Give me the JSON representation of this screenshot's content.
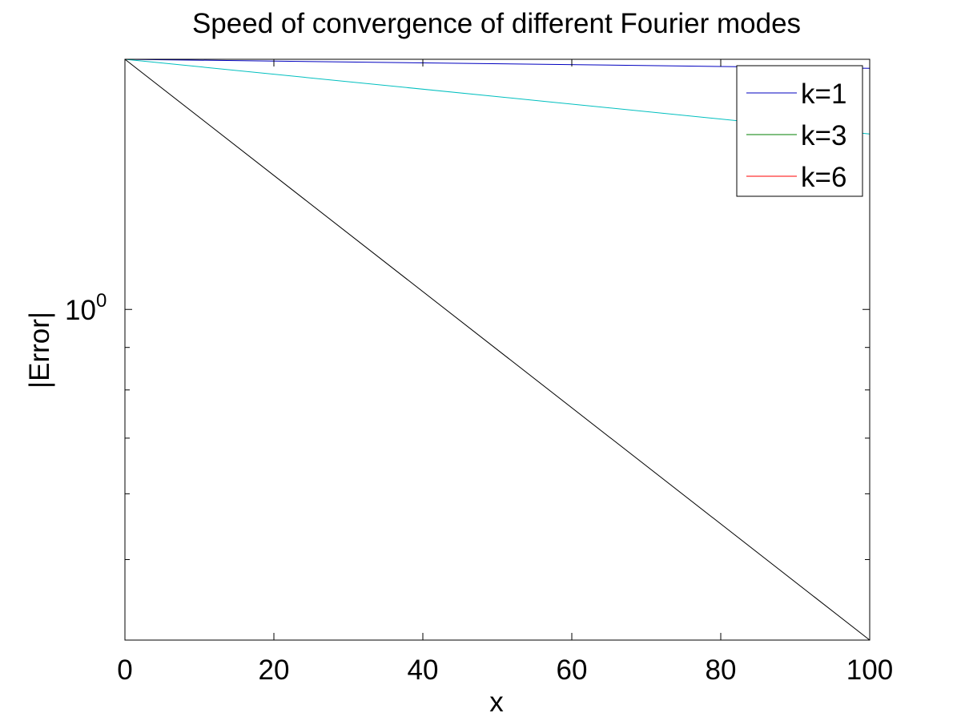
{
  "chart_data": {
    "type": "line",
    "title": "Speed of convergence of different Fourier modes",
    "xlabel": "x",
    "ylabel": "|Error|",
    "xlim": [
      0,
      100
    ],
    "ylim": [
      0.4,
      2.0
    ],
    "yscale": "log",
    "xticks": [
      0,
      20,
      40,
      60,
      80,
      100
    ],
    "xtick_labels": [
      "0",
      "20",
      "40",
      "60",
      "80",
      "100"
    ],
    "ytick_major": [
      {
        "value": 1,
        "base": "10",
        "exponent": "0"
      }
    ],
    "ytick_minor": [
      0.4,
      0.5,
      0.6,
      0.7,
      0.8,
      0.9,
      2.0
    ],
    "grid": false,
    "legend_position": "top-right",
    "legend": [
      {
        "label": "k=1",
        "color": "#0000bf"
      },
      {
        "label": "k=3",
        "color": "#007f00"
      },
      {
        "label": "k=6",
        "color": "#ff0000"
      }
    ],
    "series": [
      {
        "color": "#0000bf",
        "x": [
          0,
          100
        ],
        "y": [
          2.0,
          1.951
        ]
      },
      {
        "color": "#00bfbf",
        "x": [
          0,
          100
        ],
        "y": [
          2.0,
          1.626
        ]
      },
      {
        "color": "#000000",
        "x": [
          0,
          100
        ],
        "y": [
          2.0,
          0.4
        ]
      }
    ]
  }
}
